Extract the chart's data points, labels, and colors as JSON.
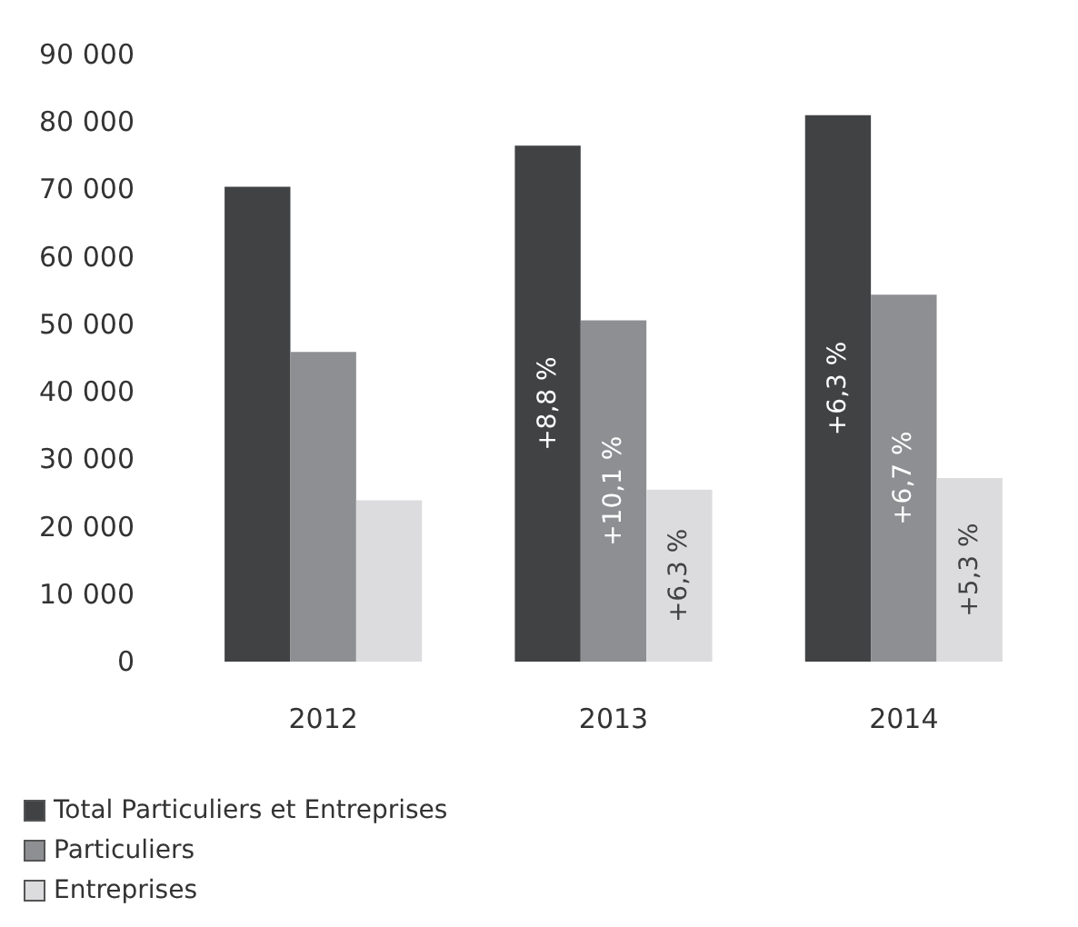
{
  "chart_data": {
    "type": "bar",
    "categories": [
      "2012",
      "2013",
      "2014"
    ],
    "series": [
      {
        "name": "Total Particuliers et Entreprises",
        "color": "#414244",
        "values": [
          70400,
          76500,
          81000
        ]
      },
      {
        "name": "Particuliers",
        "color": "#8e8f92",
        "values": [
          45900,
          50600,
          54400
        ]
      },
      {
        "name": "Entreprises",
        "color": "#dcdcde",
        "values": [
          23900,
          25500,
          27200
        ]
      }
    ],
    "annotations": [
      "+8,8 %",
      "+10,1 %",
      "+6,3 %",
      "+6,3 %",
      "+6,7 %",
      "+5,3 %"
    ],
    "ylim": [
      0,
      90000
    ],
    "yticks": [
      {
        "value": 0,
        "label": "0"
      },
      {
        "value": 10000,
        "label": "10 000"
      },
      {
        "value": 20000,
        "label": "20 000"
      },
      {
        "value": 30000,
        "label": "30 000"
      },
      {
        "value": 40000,
        "label": "40 000"
      },
      {
        "value": 50000,
        "label": "50 000"
      },
      {
        "value": 60000,
        "label": "60 000"
      },
      {
        "value": 70000,
        "label": "70 000"
      },
      {
        "value": 80000,
        "label": "80 000"
      },
      {
        "value": 90000,
        "label": "90 000"
      }
    ],
    "grid": false,
    "legend": "bottom left"
  }
}
